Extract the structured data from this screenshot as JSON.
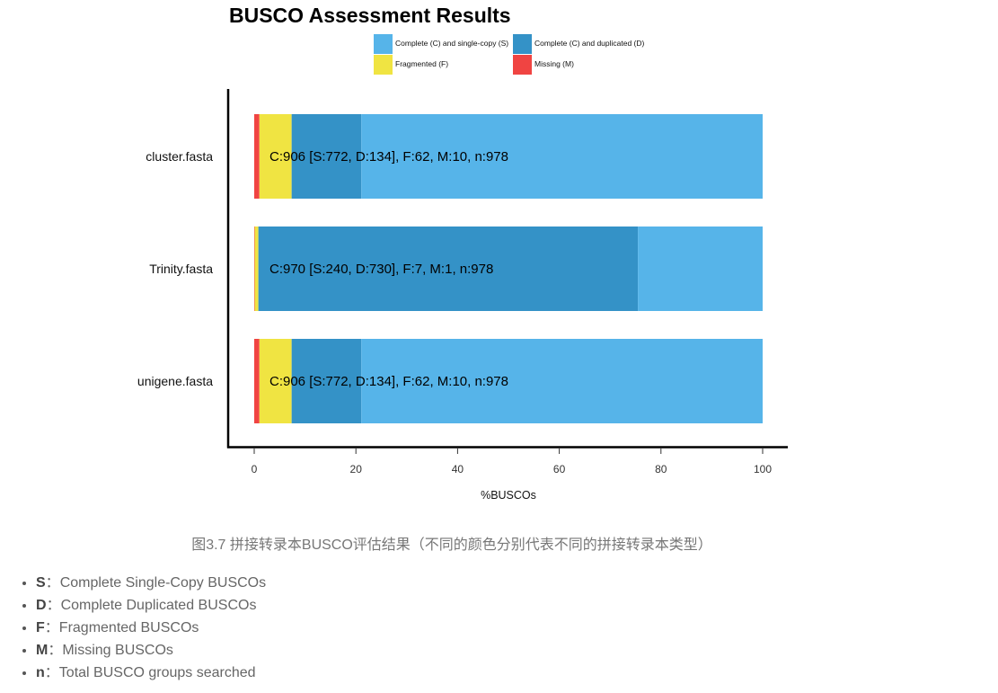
{
  "chart_data": {
    "type": "bar",
    "orientation": "horizontal",
    "stacked": true,
    "title": "BUSCO Assessment Results",
    "xlabel": "%BUSCOs",
    "xlim": [
      0,
      100
    ],
    "xticks": [
      0,
      20,
      40,
      60,
      80,
      100
    ],
    "grid": false,
    "legend_position": "top",
    "categories": [
      "cluster.fasta",
      "Trinity.fasta",
      "unigene.fasta"
    ],
    "series": [
      {
        "name": "Complete (C) and single-copy (S)",
        "color": "#56B4E9",
        "values": [
          78.94,
          24.54,
          78.94
        ]
      },
      {
        "name": "Complete (C) and duplicated (D)",
        "color": "#3492C7",
        "values": [
          13.7,
          74.64,
          13.7
        ]
      },
      {
        "name": "Fragmented (F)",
        "color": "#F0E442",
        "values": [
          6.34,
          0.72,
          6.34
        ]
      },
      {
        "name": "Missing (M)",
        "color": "#F04442",
        "values": [
          1.02,
          0.1,
          1.02
        ]
      }
    ],
    "bar_labels": [
      "C:906 [S:772, D:134], F:62, M:10, n:978",
      "C:970 [S:240, D:730], F:7, M:1, n:978",
      "C:906 [S:772, D:134], F:62, M:10, n:978"
    ]
  },
  "caption": "图3.7 拼接转录本BUSCO评估结果（不同的颜色分别代表不同的拼接转录本类型）",
  "definitions": [
    {
      "term": "S",
      "sep": "：",
      "text": "Complete Single-Copy BUSCOs"
    },
    {
      "term": "D",
      "sep": "：",
      "text": "Complete Duplicated BUSCOs"
    },
    {
      "term": "F",
      "sep": "：",
      "text": "Fragmented BUSCOs"
    },
    {
      "term": "M",
      "sep": "：",
      "text": "Missing BUSCOs"
    },
    {
      "term": "n",
      "sep": "：",
      "text": "Total BUSCO groups searched"
    }
  ]
}
